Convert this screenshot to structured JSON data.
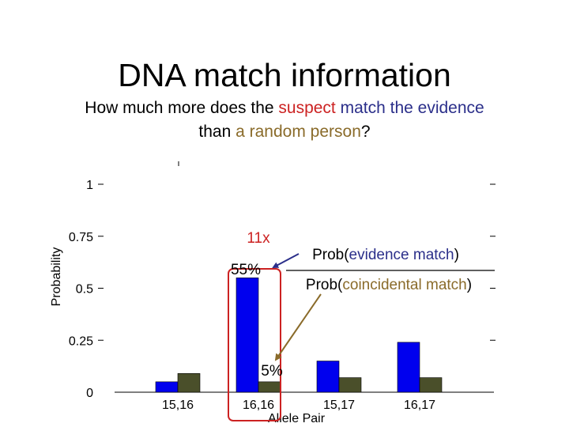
{
  "slide": {
    "title": "DNA match information",
    "subtitle": {
      "p1": "How much more does the ",
      "suspect": "suspect",
      "sp1": " ",
      "match": "match the evidence",
      "p2": "than ",
      "random": "a random person",
      "p3": "?"
    }
  },
  "annotations": {
    "ratio": "11x",
    "suspect_pct": "55%",
    "random_pct": "5%",
    "numerator_prefix": "Prob(",
    "numerator_colored": "evidence match",
    "numerator_suffix": ")",
    "denominator_prefix": "Prob(",
    "denominator_colored": "coincidental match",
    "denominator_suffix": ")"
  },
  "colors": {
    "suspect_series": "#0000ee",
    "random_series": "#4a4f2a",
    "highlight_box": "#cc2222",
    "arrow_blue": "#2b2f8a",
    "arrow_brown": "#8a6b2a",
    "suspect_text": "#cc2222",
    "match_text": "#2b2f8a",
    "random_text": "#8a6b2a"
  },
  "chart_data": {
    "type": "bar",
    "xlabel": "Allele Pair",
    "ylabel": "Probability",
    "categories": [
      "15,16",
      "16,16",
      "15,17",
      "16,17"
    ],
    "ylim": [
      0,
      1
    ],
    "yticks": [
      0,
      0.25,
      0.5,
      0.75,
      1
    ],
    "ytick_labels": [
      "0",
      "0.25",
      "0.5",
      "0.75",
      "1"
    ],
    "series": [
      {
        "values": [
          0.05,
          0.55,
          0.15,
          0.24
        ]
      },
      {
        "values": [
          0.09,
          0.05,
          0.07,
          0.07
        ]
      }
    ],
    "highlight_category": "16,16",
    "grid": false
  }
}
